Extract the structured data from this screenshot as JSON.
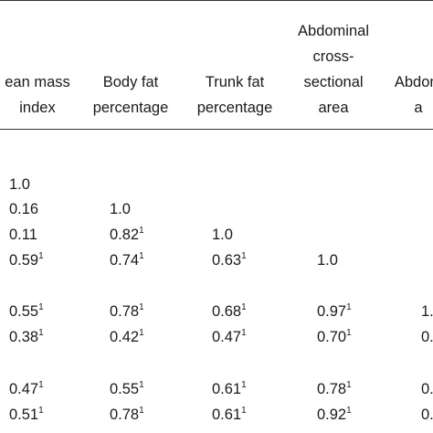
{
  "columns": [
    {
      "key": "lean_mass_index",
      "lines": [
        "ean mass",
        "index"
      ]
    },
    {
      "key": "body_fat_percentage",
      "lines": [
        "Body fat",
        "percentage"
      ]
    },
    {
      "key": "trunk_fat_percentage",
      "lines": [
        "Trunk fat",
        "percentage"
      ]
    },
    {
      "key": "abdominal_cross_sectional_area",
      "lines": [
        "Abdominal",
        "cross-",
        "sectional",
        "area"
      ]
    },
    {
      "key": "abdominal_partial",
      "lines": [
        "Abdom",
        "a"
      ]
    }
  ],
  "rows": [
    [
      {
        "v": "1.0",
        "sup": ""
      }
    ],
    [
      {
        "v": "0.16",
        "sup": ""
      },
      {
        "v": "1.0",
        "sup": ""
      }
    ],
    [
      {
        "v": "0.11",
        "sup": ""
      },
      {
        "v": "0.82",
        "sup": "1"
      },
      {
        "v": "1.0",
        "sup": ""
      }
    ],
    [
      {
        "v": "0.59",
        "sup": "1"
      },
      {
        "v": "0.74",
        "sup": "1"
      },
      {
        "v": "0.63",
        "sup": "1"
      },
      {
        "v": "1.0",
        "sup": ""
      }
    ],
    [
      {
        "v": "0.55",
        "sup": "1"
      },
      {
        "v": "0.78",
        "sup": "1"
      },
      {
        "v": "0.68",
        "sup": "1"
      },
      {
        "v": "0.97",
        "sup": "1"
      },
      {
        "v": "1.",
        "sup": ""
      }
    ],
    [
      {
        "v": "0.38",
        "sup": "1"
      },
      {
        "v": "0.42",
        "sup": "1"
      },
      {
        "v": "0.47",
        "sup": "1"
      },
      {
        "v": "0.70",
        "sup": "1"
      },
      {
        "v": "0.",
        "sup": ""
      }
    ],
    [
      {
        "v": "0.47",
        "sup": "1"
      },
      {
        "v": "0.55",
        "sup": "1"
      },
      {
        "v": "0.61",
        "sup": "1"
      },
      {
        "v": "0.78",
        "sup": "1"
      },
      {
        "v": "0.",
        "sup": ""
      }
    ],
    [
      {
        "v": "0.51",
        "sup": "1"
      },
      {
        "v": "0.78",
        "sup": "1"
      },
      {
        "v": "0.61",
        "sup": "1"
      },
      {
        "v": "0.92",
        "sup": "1"
      },
      {
        "v": "0.",
        "sup": ""
      }
    ]
  ]
}
